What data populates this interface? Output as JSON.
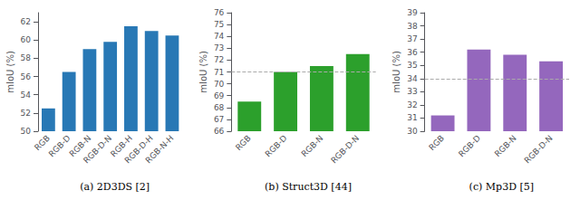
{
  "chart_data": [
    {
      "type": "bar",
      "title": "(a) 2D3DS [2]",
      "categories": [
        "RGB",
        "RGB-D",
        "RGB-N",
        "RGB-D-N",
        "RGB-H",
        "RGB-D-H",
        "RGB-N-H"
      ],
      "values": [
        52.5,
        56.5,
        59.0,
        59.8,
        61.5,
        61.0,
        60.5
      ],
      "color": "#2878b5",
      "ylabel": "mIoU (%)",
      "ylim": [
        50,
        63
      ],
      "yticks": [
        50,
        52,
        54,
        56,
        58,
        60,
        62
      ],
      "grid": false
    },
    {
      "type": "bar",
      "title": "(b) Struct3D [44]",
      "categories": [
        "RGB",
        "RGB-D",
        "RGB-N",
        "RGB-D-N"
      ],
      "values": [
        68.5,
        71.0,
        71.5,
        72.5
      ],
      "color": "#2ca02c",
      "ylabel": "mIoU (%)",
      "ylim": [
        66,
        76
      ],
      "yticks": [
        66,
        67,
        68,
        69,
        70,
        71,
        72,
        73,
        74,
        75,
        76
      ],
      "grid": false,
      "hline": 71.0
    },
    {
      "type": "bar",
      "title": "(c) Mp3D [5]",
      "categories": [
        "RGB",
        "RGB-D",
        "RGB-N",
        "RGB-D-N"
      ],
      "values": [
        31.2,
        36.2,
        35.8,
        35.3
      ],
      "color": "#9467bd",
      "ylabel": "mIoU (%)",
      "ylim": [
        30,
        39
      ],
      "yticks": [
        30,
        31,
        32,
        33,
        34,
        35,
        36,
        37,
        38,
        39
      ],
      "grid": false,
      "hline": 34.0
    }
  ]
}
